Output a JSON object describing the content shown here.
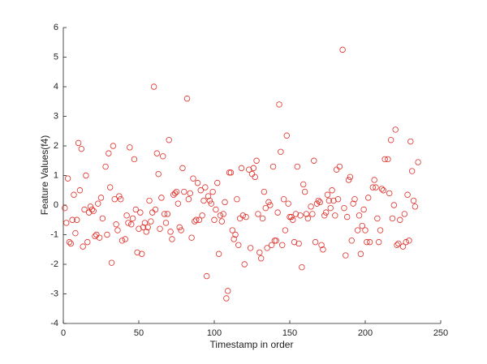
{
  "chart_data": {
    "type": "scatter",
    "xlabel": "Timestamp in order",
    "ylabel": "Feature Values(f4)",
    "color": "#e0302a",
    "xlim": [
      0,
      250
    ],
    "xticks": [
      0,
      50,
      100,
      150,
      200,
      250
    ],
    "ylim": [
      -4,
      6
    ],
    "yticks": [
      -4,
      -3,
      -2,
      -1,
      0,
      1,
      2,
      3,
      4,
      5,
      6
    ],
    "x": [
      1,
      2,
      3,
      4,
      5,
      6,
      7,
      8,
      9,
      10,
      11,
      12,
      13,
      14,
      15,
      16,
      17,
      18,
      19,
      20,
      21,
      22,
      23,
      24,
      25,
      26,
      28,
      29,
      30,
      31,
      32,
      33,
      34,
      35,
      36,
      37,
      38,
      39,
      41,
      42,
      43,
      44,
      45,
      46,
      47,
      48,
      49,
      50,
      51,
      52,
      53,
      54,
      55,
      56,
      57,
      58,
      59,
      60,
      61,
      62,
      63,
      64,
      65,
      66,
      67,
      68,
      69,
      70,
      71,
      72,
      73,
      74,
      75,
      76,
      77,
      78,
      79,
      80,
      82,
      83,
      84,
      85,
      86,
      87,
      88,
      89,
      90,
      91,
      92,
      93,
      94,
      95,
      96,
      97,
      98,
      99,
      100,
      101,
      102,
      103,
      104,
      105,
      106,
      107,
      108,
      109,
      110,
      111,
      112,
      113,
      114,
      115,
      116,
      117,
      118,
      119,
      120,
      121,
      123,
      124,
      125,
      126,
      127,
      128,
      129,
      130,
      131,
      132,
      133,
      134,
      135,
      136,
      137,
      138,
      139,
      140,
      141,
      142,
      143,
      144,
      145,
      146,
      147,
      148,
      149,
      150,
      151,
      152,
      153,
      154,
      155,
      156,
      157,
      158,
      159,
      160,
      161,
      162,
      164,
      165,
      166,
      167,
      168,
      169,
      170,
      171,
      172,
      173,
      174,
      175,
      176,
      177,
      178,
      179,
      180,
      181,
      182,
      183,
      185,
      186,
      187,
      188,
      189,
      190,
      191,
      192,
      193,
      195,
      196,
      197,
      198,
      199,
      200,
      201,
      202,
      203,
      205,
      206,
      207,
      208,
      209,
      210,
      211,
      212,
      213,
      215,
      216,
      217,
      218,
      219,
      220,
      221,
      222,
      223,
      225,
      226,
      227,
      228,
      229,
      230,
      231,
      232,
      233,
      235
    ],
    "y": [
      -0.1,
      -0.6,
      0.9,
      -1.25,
      -1.3,
      -0.5,
      0.35,
      -0.95,
      -0.5,
      2.1,
      0.5,
      1.9,
      -1.4,
      -0.15,
      1.0,
      -1.25,
      -0.25,
      -0.05,
      -0.15,
      -0.2,
      -1.05,
      -1.0,
      0.05,
      -1.1,
      0.25,
      -0.45,
      1.3,
      -1.0,
      1.75,
      0.6,
      -1.95,
      2.0,
      0.2,
      -0.65,
      -0.85,
      0.3,
      0.2,
      -1.2,
      -1.15,
      -0.35,
      -0.6,
      1.95,
      -0.65,
      -0.45,
      1.55,
      -0.15,
      -1.6,
      -0.8,
      -0.25,
      -1.65,
      -0.75,
      -0.6,
      -0.9,
      -0.75,
      0.15,
      -0.55,
      -0.25,
      4.0,
      -0.15,
      1.75,
      1.05,
      -0.8,
      0.25,
      1.65,
      -0.3,
      -0.6,
      -0.3,
      2.2,
      -0.9,
      -1.15,
      0.35,
      0.4,
      0.45,
      0.05,
      -0.75,
      -0.85,
      1.25,
      0.45,
      3.6,
      0.2,
      0.4,
      -1.1,
      0.9,
      -0.55,
      -0.5,
      0.75,
      -0.5,
      0.5,
      -0.35,
      0.15,
      0.6,
      -2.4,
      0.3,
      0.15,
      0.05,
      0.45,
      -0.5,
      -0.15,
      0.75,
      -1.65,
      -0.35,
      -0.55,
      -0.3,
      0.1,
      -3.15,
      -2.9,
      1.1,
      1.1,
      -0.85,
      -1.15,
      -1.0,
      0.2,
      -1.35,
      -0.45,
      1.25,
      -0.35,
      -2.0,
      -0.4,
      1.2,
      -1.45,
      1.05,
      1.25,
      0.95,
      1.5,
      -0.3,
      -1.6,
      -1.8,
      -0.45,
      0.45,
      -0.1,
      -1.45,
      0.1,
      0.0,
      -1.35,
      1.3,
      -1.2,
      -1.2,
      -0.25,
      3.4,
      1.8,
      -1.35,
      0.2,
      -0.85,
      2.35,
      0.05,
      -0.4,
      -0.4,
      -0.5,
      -1.25,
      -0.3,
      1.3,
      -1.3,
      -0.35,
      -2.1,
      0.7,
      0.45,
      -0.3,
      -0.45,
      -0.05,
      -0.3,
      1.5,
      -1.25,
      0.05,
      0.15,
      0.1,
      -1.35,
      -1.5,
      -0.35,
      -0.25,
      0.35,
      0.15,
      -0.1,
      0.5,
      0.15,
      -0.35,
      1.2,
      0.2,
      1.3,
      5.25,
      -0.1,
      -1.7,
      -0.4,
      0.85,
      0.95,
      -1.2,
      0.05,
      0.2,
      -0.85,
      -0.35,
      -1.65,
      -0.7,
      -0.15,
      -0.85,
      -1.25,
      0.25,
      -1.25,
      0.6,
      0.85,
      0.6,
      -0.45,
      -1.25,
      -0.85,
      0.55,
      0.5,
      1.55,
      1.55,
      0.4,
      2.2,
      -0.45,
      0.0,
      2.55,
      -1.35,
      -1.3,
      -0.5,
      -1.4,
      -0.3,
      -1.25,
      0.35,
      -1.2,
      2.15,
      1.15,
      0.15,
      -0.05,
      1.45
    ]
  }
}
